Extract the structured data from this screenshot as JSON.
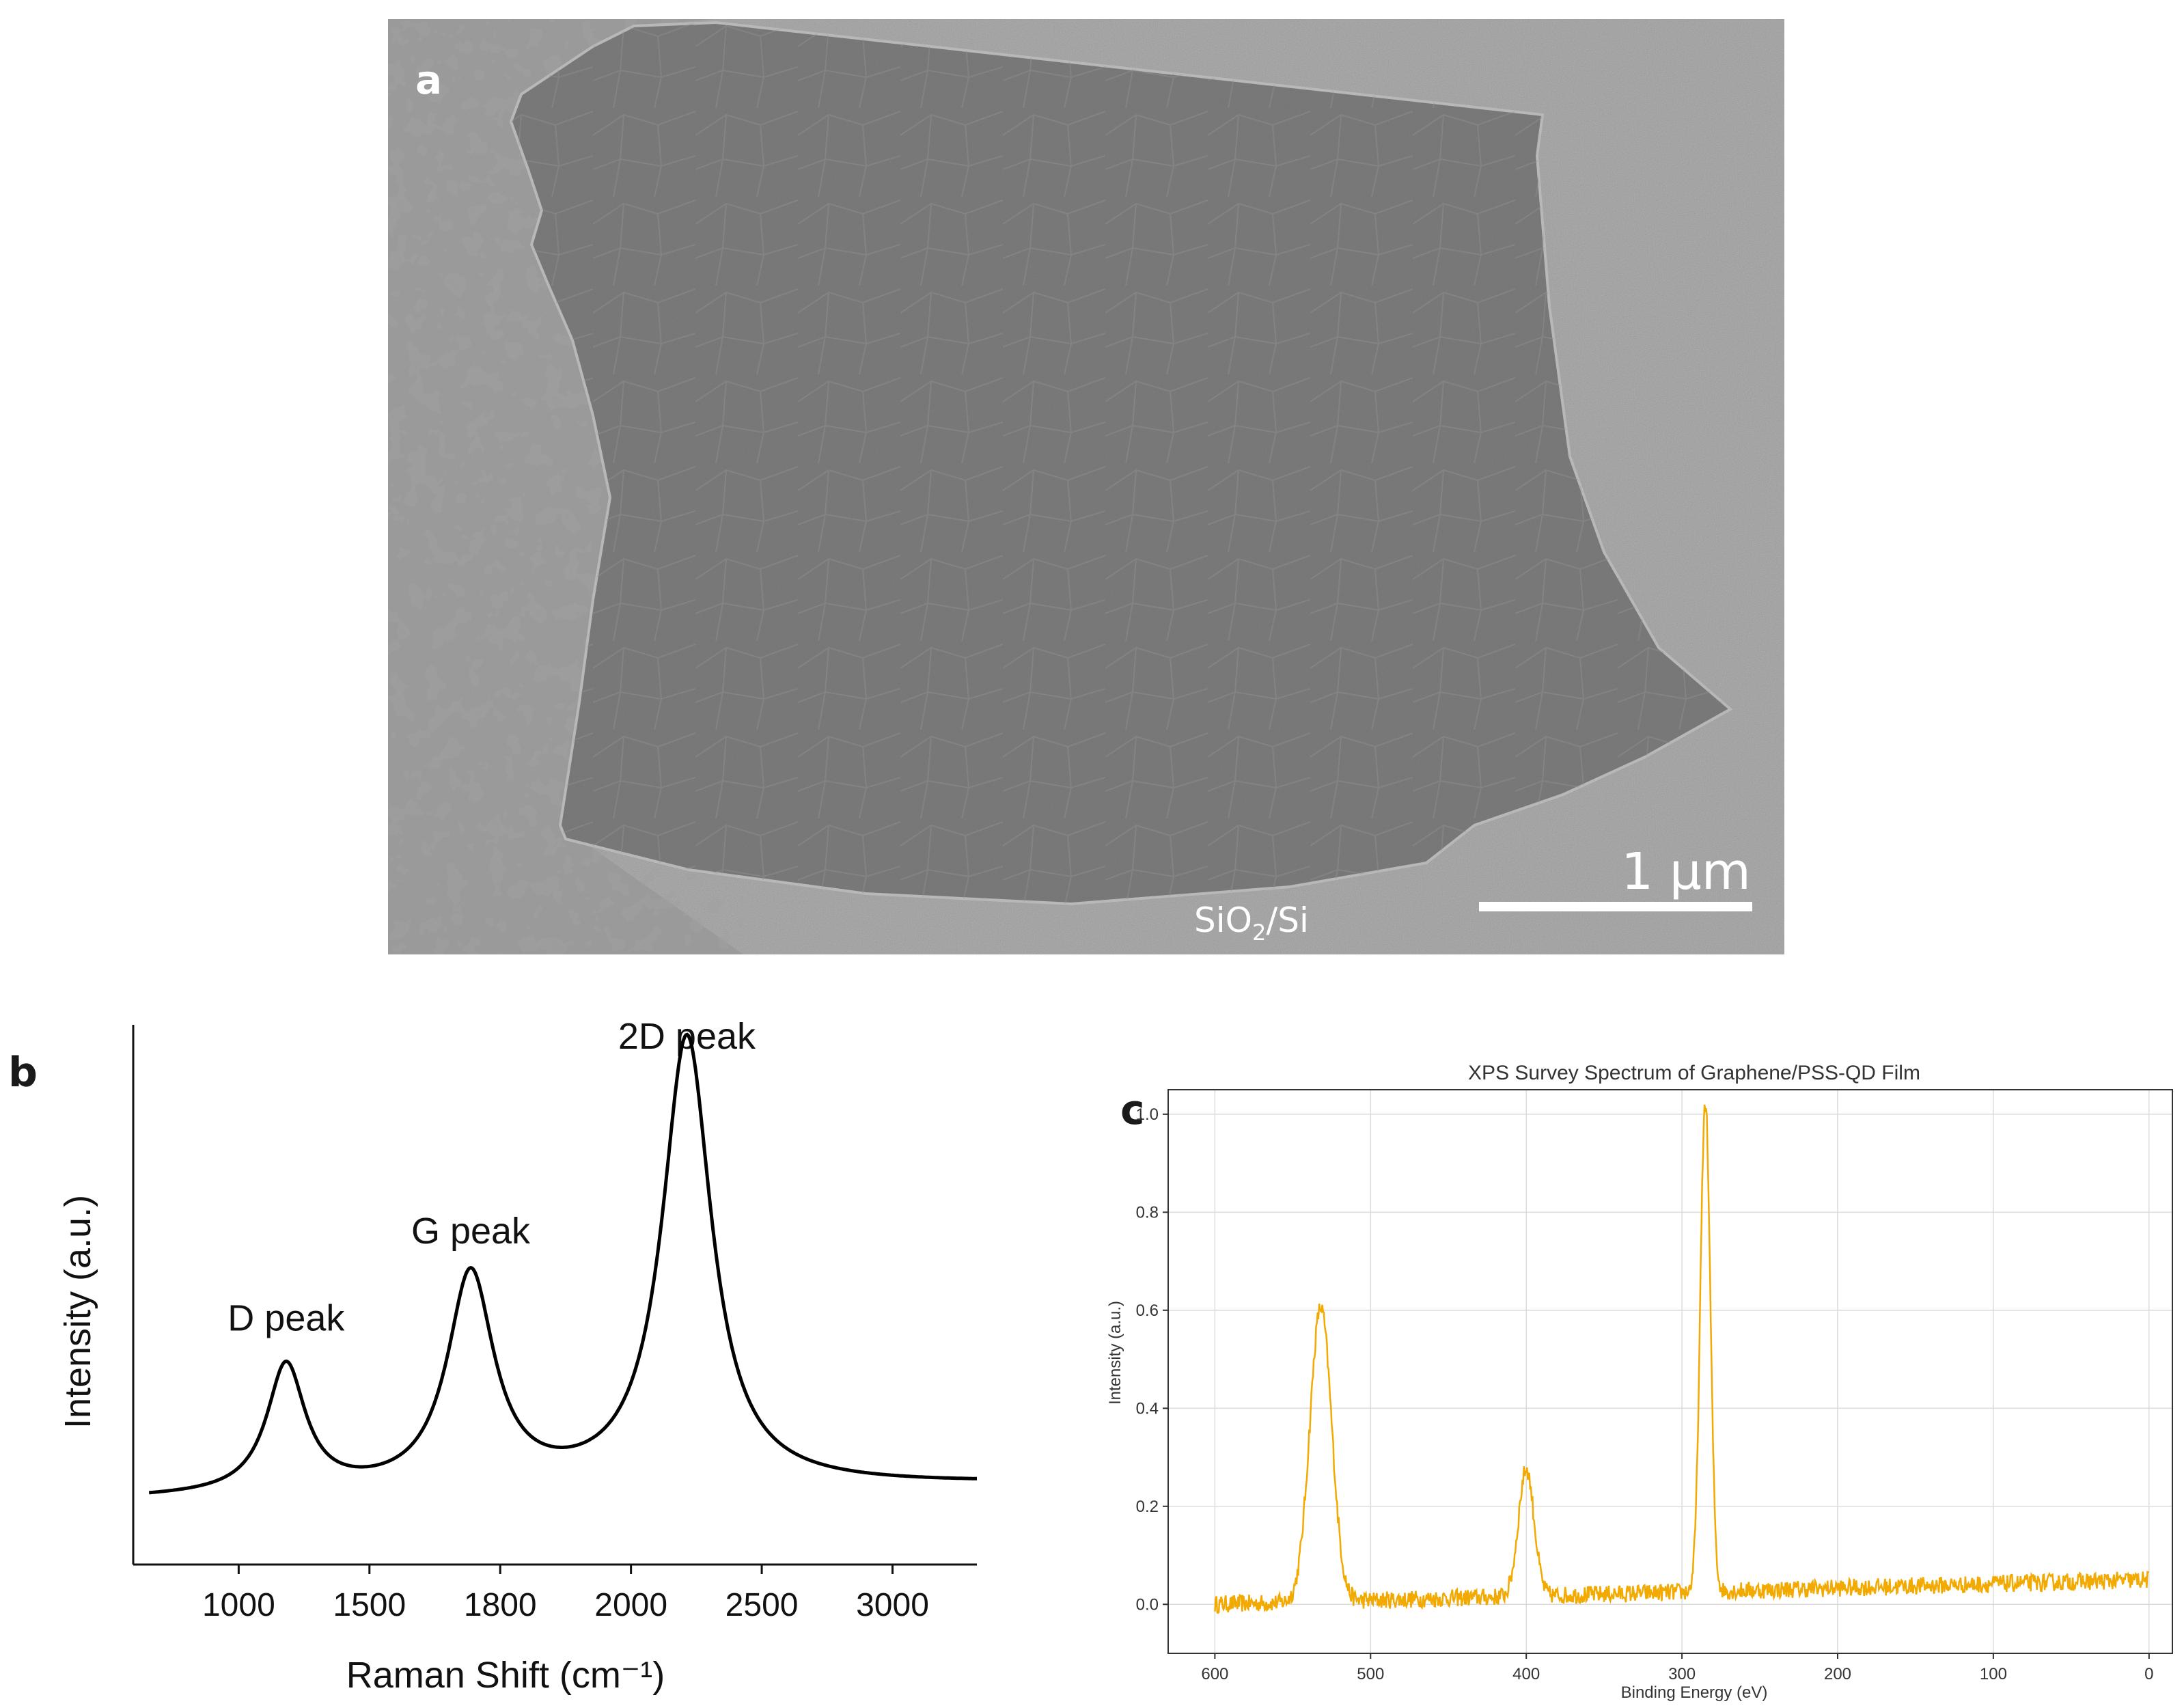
{
  "panels": {
    "a": {
      "letter": "a",
      "scale_bar_label": "1 µm",
      "substrate_label_main": "SiO",
      "substrate_label_sub": "2",
      "substrate_label_rest": "/Si"
    },
    "b": {
      "letter": "b"
    },
    "c": {
      "letter": "c"
    }
  },
  "chart_data": [
    {
      "type": "line",
      "panel": "b",
      "title": "",
      "xlabel": "Raman Shift (cm⁻¹)",
      "ylabel": "Intensity (a.u.)",
      "x_ticks": [
        "1000",
        "1500",
        "1800",
        "2000",
        "2500",
        "3000"
      ],
      "y_ticks": [],
      "annotations": [
        {
          "text": "D peak",
          "x_index": 1.45,
          "y": 0.43
        },
        {
          "text": "G peak",
          "x_index": 3.2,
          "y": 0.6
        },
        {
          "text": "2D peak",
          "x_index": 5.25,
          "y": 0.98
        }
      ],
      "series": [
        {
          "color": "#000000",
          "peaks": [
            {
              "center_index": 1.45,
              "height": 0.25,
              "width": 0.28
            },
            {
              "center_index": 3.2,
              "height": 0.42,
              "width": 0.34
            },
            {
              "center_index": 5.25,
              "height": 0.88,
              "width": 0.36
            }
          ],
          "baseline": 0.1,
          "x_range_index": [
            0,
            8.0
          ]
        }
      ]
    },
    {
      "type": "line",
      "panel": "c",
      "title": "XPS Survey Spectrum of Graphene/PSS-QD Film",
      "xlabel": "Binding Energy (eV)",
      "ylabel": "Intensity (a.u.)",
      "xlim": [
        630,
        -15
      ],
      "ylim": [
        -0.1,
        1.05
      ],
      "x_ticks": [
        600,
        500,
        400,
        300,
        200,
        100,
        0
      ],
      "y_ticks": [
        0.0,
        0.2,
        0.4,
        0.6,
        0.8,
        1.0
      ],
      "grid": true,
      "series": [
        {
          "color": "#f2a900",
          "peaks": [
            {
              "center": 532,
              "height": 0.6,
              "width": 7
            },
            {
              "center": 400,
              "height": 0.26,
              "width": 5
            },
            {
              "center": 285,
              "height": 1.0,
              "width": 3.2
            }
          ],
          "baseline_start": 0.0,
          "baseline_end": 0.05,
          "noise": 0.018,
          "x_range": [
            600,
            0
          ]
        }
      ]
    }
  ]
}
